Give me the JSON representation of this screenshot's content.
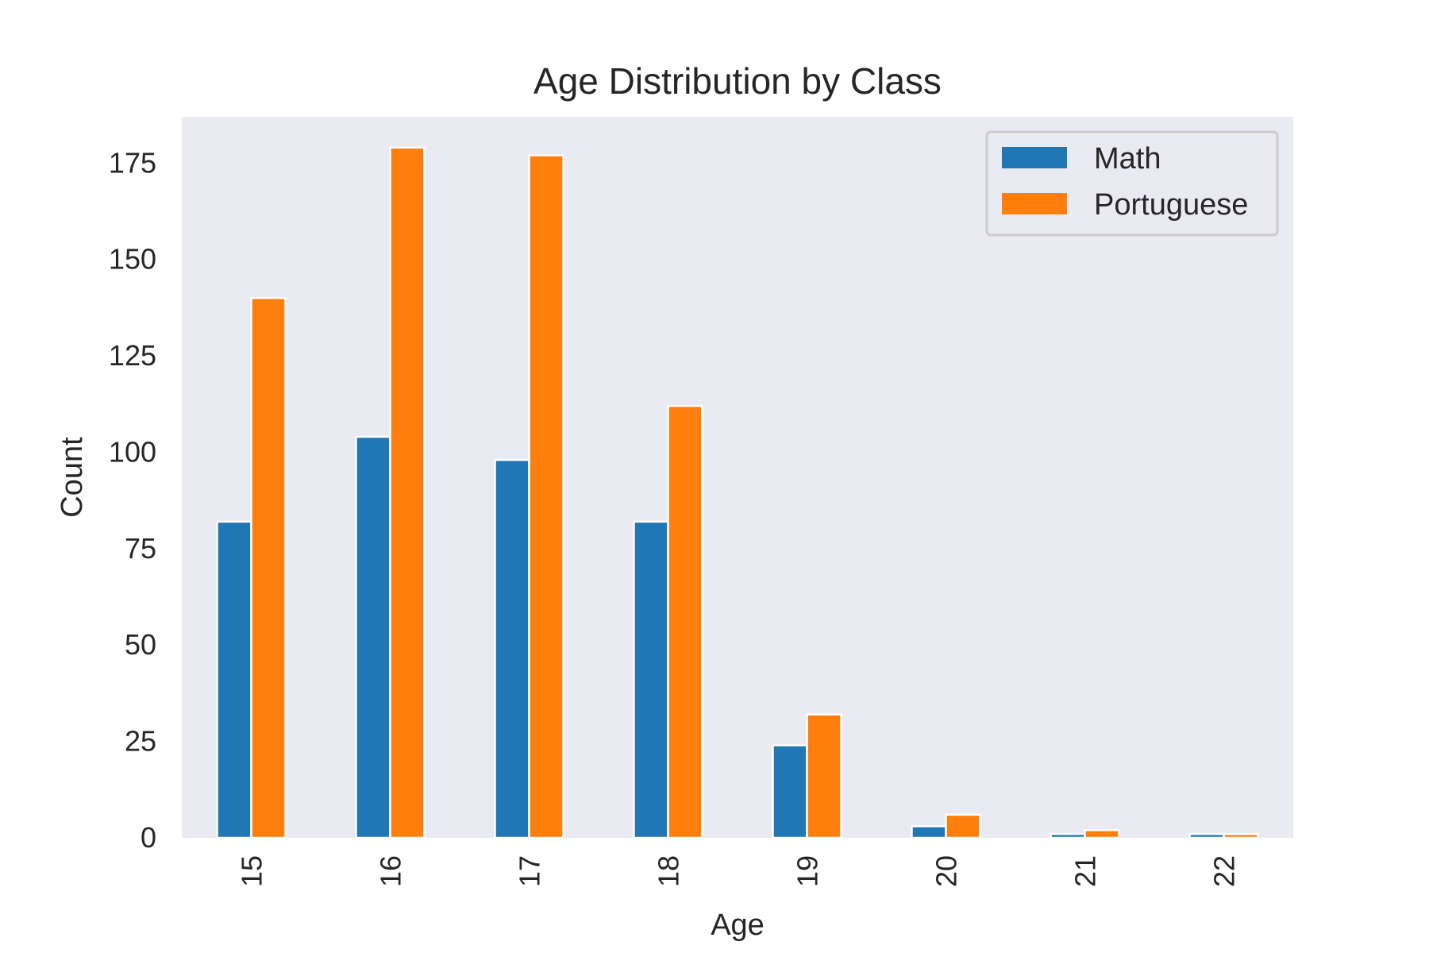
{
  "chart_data": {
    "type": "bar",
    "title": "Age Distribution by Class",
    "xlabel": "Age",
    "ylabel": "Count",
    "categories": [
      "15",
      "16",
      "17",
      "18",
      "19",
      "20",
      "21",
      "22"
    ],
    "series": [
      {
        "name": "Math",
        "color": "#1f77b4",
        "values": [
          82,
          104,
          98,
          82,
          24,
          3,
          1,
          1
        ]
      },
      {
        "name": "Portuguese",
        "color": "#ff7f0e",
        "values": [
          140,
          179,
          177,
          112,
          32,
          6,
          2,
          1
        ]
      }
    ],
    "ylim": [
      0,
      187
    ],
    "yticks": [
      0,
      25,
      50,
      75,
      100,
      125,
      150,
      175
    ],
    "grid": false,
    "background": "#eaeaf2",
    "legend_position": "top-right"
  }
}
